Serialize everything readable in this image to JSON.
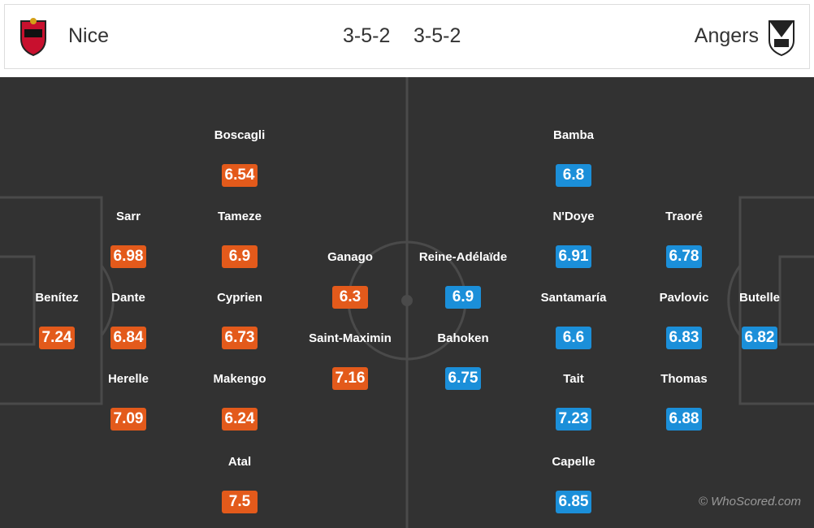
{
  "header": {
    "home_team": "Nice",
    "home_formation": "3-5-2",
    "away_formation": "3-5-2",
    "away_team": "Angers"
  },
  "home_players": [
    {
      "name": "Benítez",
      "rating": 7.24
    },
    {
      "name": "Sarr",
      "rating": 6.98
    },
    {
      "name": "Dante",
      "rating": 6.84
    },
    {
      "name": "Herelle",
      "rating": 7.09
    },
    {
      "name": "Boscagli",
      "rating": 6.54
    },
    {
      "name": "Tameze",
      "rating": 6.9
    },
    {
      "name": "Cyprien",
      "rating": 6.73
    },
    {
      "name": "Makengo",
      "rating": 6.24
    },
    {
      "name": "Atal",
      "rating": 7.5
    },
    {
      "name": "Ganago",
      "rating": 6.3
    },
    {
      "name": "Saint-Maximin",
      "rating": 7.16
    }
  ],
  "away_players": [
    {
      "name": "Butelle",
      "rating": 6.82
    },
    {
      "name": "Traoré",
      "rating": 6.78
    },
    {
      "name": "Pavlovic",
      "rating": 6.83
    },
    {
      "name": "Thomas",
      "rating": 6.88
    },
    {
      "name": "Bamba",
      "rating": 6.8
    },
    {
      "name": "N'Doye",
      "rating": 6.91
    },
    {
      "name": "Santamaría",
      "rating": 6.6
    },
    {
      "name": "Tait",
      "rating": 7.23
    },
    {
      "name": "Capelle",
      "rating": 6.85
    },
    {
      "name": "Reine-Adélaïde",
      "rating": 6.9
    },
    {
      "name": "Bahoken",
      "rating": 6.75
    }
  ],
  "watermark": "© WhoScored.com"
}
